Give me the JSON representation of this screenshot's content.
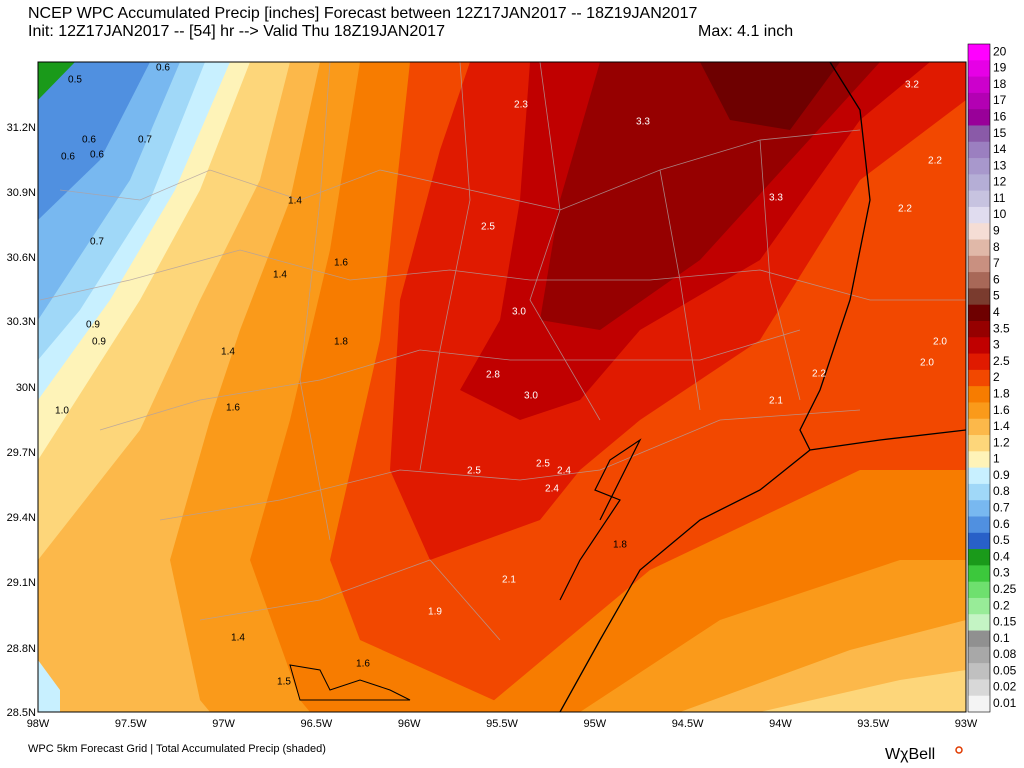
{
  "header": {
    "line1": "NCEP WPC Accumulated Precip [inches] Forecast between 12Z17JAN2017 -- 18Z19JAN2017",
    "line2": "Init: 12Z17JAN2017 -- [54] hr --> Valid Thu 18Z19JAN2017",
    "max": "Max: 4.1 inch"
  },
  "footer": {
    "caption": "WPC 5km Forecast Grid | Total Accumulated Precip (shaded)",
    "brand": "WχBell"
  },
  "map": {
    "lat_labels": [
      "31.2N",
      "30.9N",
      "30.6N",
      "30.3N",
      "30N",
      "29.7N",
      "29.4N",
      "29.1N",
      "28.8N",
      "28.5N"
    ],
    "lon_labels": [
      "98W",
      "97.5W",
      "97W",
      "96.5W",
      "96W",
      "95.5W",
      "95W",
      "94.5W",
      "94W",
      "93.5W",
      "93W"
    ],
    "contour_labels": [
      "0.5",
      "0.6",
      "0.6",
      "0.7",
      "0.6",
      "0.6",
      "0.7",
      "0.9",
      "0.9",
      "1.0",
      "1.4",
      "1.4",
      "1.6",
      "1.4",
      "1.8",
      "1.6",
      "1.4",
      "1.6",
      "1.5",
      "2.3",
      "3.3",
      "3.2",
      "2.2",
      "3.3",
      "2.2",
      "2.5",
      "3.0",
      "2.8",
      "3.0",
      "2.5",
      "2.4",
      "2.5",
      "2.4",
      "2.0",
      "2.0",
      "2.2",
      "2.1",
      "1.8",
      "2.1",
      "1.9"
    ]
  },
  "legend": [
    {
      "label": "20",
      "color": "#ff00ff"
    },
    {
      "label": "19",
      "color": "#e600e6"
    },
    {
      "label": "18",
      "color": "#cc00cc"
    },
    {
      "label": "17",
      "color": "#b300b3"
    },
    {
      "label": "16",
      "color": "#990099"
    },
    {
      "label": "15",
      "color": "#8a5aa8"
    },
    {
      "label": "14",
      "color": "#9b7fc0"
    },
    {
      "label": "13",
      "color": "#a898cc"
    },
    {
      "label": "12",
      "color": "#b5aed6"
    },
    {
      "label": "11",
      "color": "#c7c3e0"
    },
    {
      "label": "10",
      "color": "#e0dcef"
    },
    {
      "label": "9",
      "color": "#f5ddd5"
    },
    {
      "label": "8",
      "color": "#e0b8a8"
    },
    {
      "label": "7",
      "color": "#c99080"
    },
    {
      "label": "6",
      "color": "#a86858"
    },
    {
      "label": "5",
      "color": "#7a3b2e"
    },
    {
      "label": "4",
      "color": "#6e0000"
    },
    {
      "label": "3.5",
      "color": "#960000"
    },
    {
      "label": "3",
      "color": "#c00000"
    },
    {
      "label": "2.5",
      "color": "#e01a00"
    },
    {
      "label": "2",
      "color": "#f24800"
    },
    {
      "label": "1.8",
      "color": "#f77c00"
    },
    {
      "label": "1.6",
      "color": "#fa9a1a"
    },
    {
      "label": "1.4",
      "color": "#fcb84a"
    },
    {
      "label": "1.2",
      "color": "#fdd67a"
    },
    {
      "label": "1",
      "color": "#fef3b8"
    },
    {
      "label": "0.9",
      "color": "#c8f0ff"
    },
    {
      "label": "0.8",
      "color": "#a0d8f8"
    },
    {
      "label": "0.7",
      "color": "#78b8f0"
    },
    {
      "label": "0.6",
      "color": "#5090e0"
    },
    {
      "label": "0.5",
      "color": "#2860c8"
    },
    {
      "label": "0.4",
      "color": "#1a9a1a"
    },
    {
      "label": "0.3",
      "color": "#3cc83c"
    },
    {
      "label": "0.25",
      "color": "#6ee06e"
    },
    {
      "label": "0.2",
      "color": "#98ec98"
    },
    {
      "label": "0.15",
      "color": "#c4f4c4"
    },
    {
      "label": "0.1",
      "color": "#909090"
    },
    {
      "label": "0.08",
      "color": "#a8a8a8"
    },
    {
      "label": "0.05",
      "color": "#c0c0c0"
    },
    {
      "label": "0.02",
      "color": "#d8d8d8"
    },
    {
      "label": "0.01",
      "color": "#f4f4f4"
    }
  ]
}
